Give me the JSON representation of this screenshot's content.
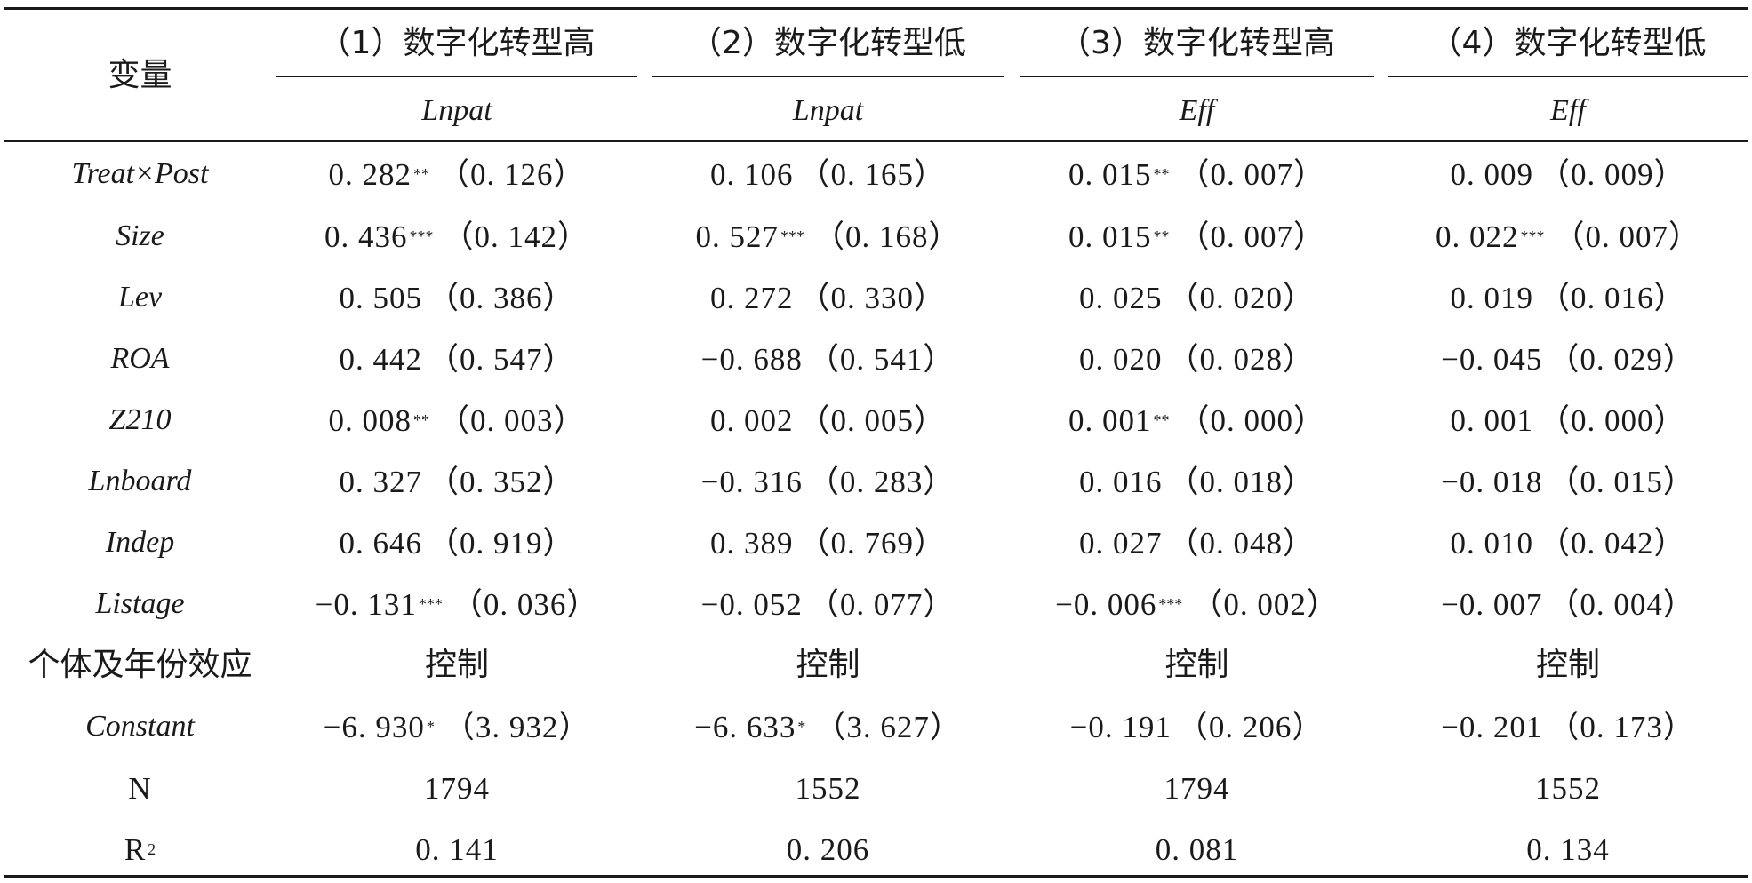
{
  "table": {
    "variable_header": "变量",
    "columns": [
      {
        "group": "（1）数字化转型高",
        "dep": "Lnpat"
      },
      {
        "group": "（2）数字化转型低",
        "dep": "Lnpat"
      },
      {
        "group": "（3）数字化转型高",
        "dep": "Eff"
      },
      {
        "group": "（4）数字化转型低",
        "dep": "Eff"
      }
    ],
    "rows": [
      {
        "label": "Treat×Post",
        "label_italic": true,
        "cells": [
          {
            "coef": "0. 282",
            "stars": "**",
            "se": "（0. 126）"
          },
          {
            "coef": "0. 106",
            "stars": "",
            "se": "（0. 165）"
          },
          {
            "coef": "0. 015",
            "stars": "**",
            "se": "（0. 007）"
          },
          {
            "coef": "0. 009",
            "stars": "",
            "se": "（0. 009）"
          }
        ]
      },
      {
        "label": "Size",
        "label_italic": true,
        "cells": [
          {
            "coef": "0. 436",
            "stars": "***",
            "se": "（0. 142）"
          },
          {
            "coef": "0. 527",
            "stars": "***",
            "se": "（0. 168）"
          },
          {
            "coef": "0. 015",
            "stars": "**",
            "se": "（0. 007）"
          },
          {
            "coef": "0. 022",
            "stars": "***",
            "se": "（0. 007）"
          }
        ]
      },
      {
        "label": "Lev",
        "label_italic": true,
        "cells": [
          {
            "coef": "0. 505",
            "stars": "",
            "se": "（0. 386）"
          },
          {
            "coef": "0. 272",
            "stars": "",
            "se": "（0. 330）"
          },
          {
            "coef": "0. 025",
            "stars": "",
            "se": "（0. 020）"
          },
          {
            "coef": "0. 019",
            "stars": "",
            "se": "（0. 016）"
          }
        ]
      },
      {
        "label": "ROA",
        "label_italic": true,
        "cells": [
          {
            "coef": "0. 442",
            "stars": "",
            "se": "（0. 547）"
          },
          {
            "coef": "−0. 688",
            "stars": "",
            "se": "（0. 541）"
          },
          {
            "coef": "0. 020",
            "stars": "",
            "se": "（0. 028）"
          },
          {
            "coef": "−0. 045",
            "stars": "",
            "se": "（0. 029）"
          }
        ]
      },
      {
        "label": "Z210",
        "label_italic": true,
        "cells": [
          {
            "coef": "0. 008",
            "stars": "**",
            "se": "（0. 003）"
          },
          {
            "coef": "0. 002",
            "stars": "",
            "se": "（0. 005）"
          },
          {
            "coef": "0. 001",
            "stars": "**",
            "se": "（0. 000）"
          },
          {
            "coef": "0. 001",
            "stars": "",
            "se": "（0. 000）"
          }
        ]
      },
      {
        "label": "Lnboard",
        "label_italic": true,
        "cells": [
          {
            "coef": "0. 327",
            "stars": "",
            "se": "（0. 352）"
          },
          {
            "coef": "−0. 316",
            "stars": "",
            "se": "（0. 283）"
          },
          {
            "coef": "0. 016",
            "stars": "",
            "se": "（0. 018）"
          },
          {
            "coef": "−0. 018",
            "stars": "",
            "se": "（0. 015）"
          }
        ]
      },
      {
        "label": "Indep",
        "label_italic": true,
        "cells": [
          {
            "coef": "0. 646",
            "stars": "",
            "se": "（0. 919）"
          },
          {
            "coef": "0. 389",
            "stars": "",
            "se": "（0. 769）"
          },
          {
            "coef": "0. 027",
            "stars": "",
            "se": "（0. 048）"
          },
          {
            "coef": "0. 010",
            "stars": "",
            "se": "（0. 042）"
          }
        ]
      },
      {
        "label": "Listage",
        "label_italic": true,
        "cells": [
          {
            "coef": "−0. 131",
            "stars": "***",
            "se": "（0. 036）"
          },
          {
            "coef": "−0. 052",
            "stars": "",
            "se": "（0. 077）"
          },
          {
            "coef": "−0. 006",
            "stars": "***",
            "se": "（0. 002）"
          },
          {
            "coef": "−0. 007",
            "stars": "",
            "se": "（0. 004）"
          }
        ]
      },
      {
        "label": "个体及年份效应",
        "label_italic": false,
        "cells": [
          {
            "coef": "控制",
            "stars": "",
            "se": ""
          },
          {
            "coef": "控制",
            "stars": "",
            "se": ""
          },
          {
            "coef": "控制",
            "stars": "",
            "se": ""
          },
          {
            "coef": "控制",
            "stars": "",
            "se": ""
          }
        ]
      },
      {
        "label": "Constant",
        "label_italic": true,
        "cells": [
          {
            "coef": "−6. 930",
            "stars": "*",
            "se": "（3. 932）"
          },
          {
            "coef": "−6. 633",
            "stars": "*",
            "se": "（3. 627）"
          },
          {
            "coef": "−0. 191",
            "stars": "",
            "se": "（0. 206）"
          },
          {
            "coef": "−0. 201",
            "stars": "",
            "se": "（0. 173）"
          }
        ]
      },
      {
        "label": "N",
        "label_italic": false,
        "cells": [
          {
            "coef": "1794",
            "stars": "",
            "se": ""
          },
          {
            "coef": "1552",
            "stars": "",
            "se": ""
          },
          {
            "coef": "1794",
            "stars": "",
            "se": ""
          },
          {
            "coef": "1552",
            "stars": "",
            "se": ""
          }
        ]
      },
      {
        "label": "R",
        "label_sup": "2",
        "label_italic": false,
        "cells": [
          {
            "coef": "0. 141",
            "stars": "",
            "se": ""
          },
          {
            "coef": "0. 206",
            "stars": "",
            "se": ""
          },
          {
            "coef": "0. 081",
            "stars": "",
            "se": ""
          },
          {
            "coef": "0. 134",
            "stars": "",
            "se": ""
          }
        ]
      }
    ]
  }
}
